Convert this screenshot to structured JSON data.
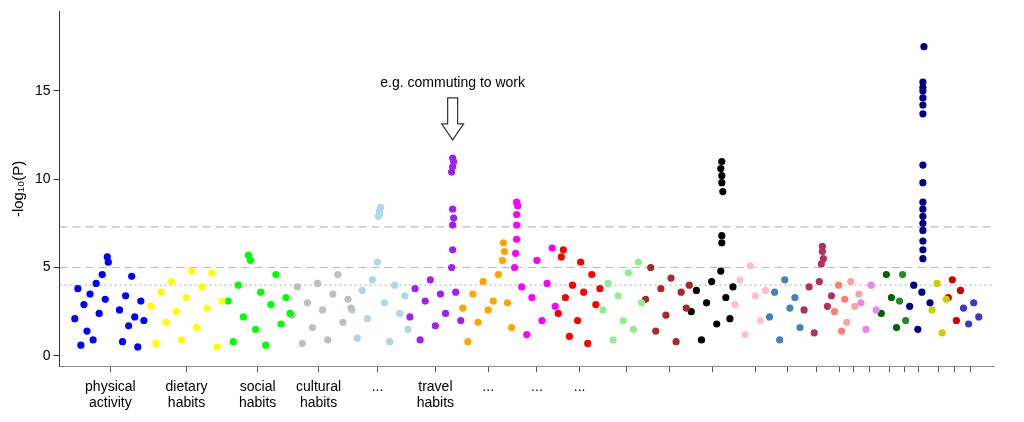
{
  "chart_data": {
    "type": "scatter",
    "y_label": "-log₁₀(P)",
    "xlim": [
      0,
      92
    ],
    "ylim": [
      -0.6,
      19.5
    ],
    "yticks": [
      0,
      5,
      10,
      15
    ],
    "grid": false,
    "xticks": [
      {
        "value": 5.0,
        "label": "physical activity"
      },
      {
        "value": 12.5,
        "label": "dietary habits"
      },
      {
        "value": 19.5,
        "label": "social habits"
      },
      {
        "value": 25.5,
        "label": "cultural habits"
      },
      {
        "value": 31.3,
        "label": "..."
      },
      {
        "value": 37.0,
        "label": "travel habits"
      },
      {
        "value": 42.2,
        "label": "..."
      },
      {
        "value": 47.0,
        "label": "..."
      },
      {
        "value": 51.2,
        "label": "..."
      },
      {
        "value": 55.8,
        "label": null
      },
      {
        "value": 60.1,
        "label": null
      },
      {
        "value": 64.3,
        "label": null
      },
      {
        "value": 68.5,
        "label": null
      },
      {
        "value": 71.7,
        "label": null
      },
      {
        "value": 74.5,
        "label": null
      },
      {
        "value": 76.8,
        "label": null
      },
      {
        "value": 78.2,
        "label": null
      },
      {
        "value": 79.7,
        "label": null
      },
      {
        "value": 81.7,
        "label": null
      },
      {
        "value": 83.2,
        "label": null
      },
      {
        "value": 84.6,
        "label": null
      },
      {
        "value": 86.5,
        "label": null
      },
      {
        "value": 88.1,
        "label": null
      },
      {
        "value": 89.7,
        "label": null
      }
    ],
    "reference_lines": [
      {
        "value": 7.3,
        "line_style": "dashed"
      },
      {
        "value": 5,
        "line_style": "dashed"
      },
      {
        "value": 4,
        "line_style": "dotted"
      }
    ],
    "annotation": {
      "text": "e.g. commuting to work",
      "x": 38.7,
      "y": 12.0
    },
    "series": [
      {
        "color": "#0000FF",
        "x": [
          1.5,
          1.8,
          2.1,
          2.4,
          2.7,
          3.0,
          3.3,
          3.6,
          3.9,
          4.2,
          4.5,
          4.7,
          4.8,
          5.9,
          6.2,
          6.5,
          6.8,
          7.1,
          7.4,
          7.7,
          8.0,
          8.3
        ],
        "values": [
          2.1,
          3.8,
          0.6,
          2.9,
          1.4,
          3.5,
          0.9,
          4.1,
          2.4,
          4.6,
          3.2,
          5.6,
          5.3,
          2.6,
          0.8,
          3.4,
          1.7,
          4.5,
          2.2,
          0.5,
          3.1,
          2.0
        ]
      },
      {
        "color": "#FFFF00",
        "x": [
          9.0,
          9.5,
          10.0,
          10.5,
          11.0,
          11.5,
          12.0,
          12.5,
          13.0,
          13.5,
          14.0,
          14.5,
          15.0,
          15.5,
          16.0
        ],
        "values": [
          2.8,
          0.7,
          3.6,
          1.9,
          4.2,
          2.5,
          0.9,
          3.3,
          4.8,
          1.6,
          3.9,
          2.7,
          4.7,
          0.5,
          3.1
        ]
      },
      {
        "color": "#00FF00",
        "x": [
          16.6,
          17.1,
          17.6,
          18.1,
          18.6,
          18.8,
          19.3,
          19.8,
          20.3,
          20.8,
          21.3,
          21.8,
          22.3,
          22.7
        ],
        "values": [
          3.1,
          0.8,
          4.0,
          2.2,
          5.7,
          5.4,
          1.5,
          3.6,
          0.6,
          2.9,
          4.6,
          1.8,
          3.3,
          2.4
        ]
      },
      {
        "color": "#BEBEBE",
        "x": [
          22.9,
          23.4,
          23.9,
          24.4,
          24.9,
          25.4,
          25.9,
          26.4,
          26.9,
          27.4,
          27.9,
          28.4,
          28.7
        ],
        "values": [
          2.3,
          3.9,
          0.7,
          3.0,
          1.6,
          4.1,
          2.6,
          0.9,
          3.5,
          4.6,
          1.9,
          3.2,
          2.7
        ]
      },
      {
        "color": "#ADD8E6",
        "x": [
          28.8,
          29.3,
          29.8,
          30.3,
          30.8,
          31.3,
          31.4,
          31.5,
          31.6,
          31.5,
          32.0,
          32.5,
          33.0,
          33.5,
          34.0,
          34.3
        ],
        "values": [
          2.6,
          1.0,
          3.7,
          2.1,
          4.3,
          5.3,
          7.9,
          8.2,
          8.4,
          8.0,
          3.0,
          0.8,
          4.0,
          2.4,
          3.4,
          1.5
        ]
      },
      {
        "color": "#A020F0",
        "x": [
          34.5,
          35.0,
          35.5,
          36.0,
          36.5,
          37.0,
          37.5,
          38.0,
          38.6,
          38.7,
          38.7,
          38.8,
          38.7,
          38.6,
          38.7,
          38.8,
          38.7,
          39.0,
          39.5
        ],
        "values": [
          2.2,
          3.8,
          0.9,
          3.1,
          4.3,
          1.7,
          3.5,
          2.4,
          5.0,
          6.0,
          7.4,
          7.8,
          8.3,
          10.4,
          10.7,
          11.0,
          11.2,
          3.6,
          2.0
        ]
      },
      {
        "color": "#FFA500",
        "x": [
          39.7,
          40.2,
          40.7,
          41.2,
          41.7,
          42.2,
          42.7,
          43.2,
          43.6,
          43.7,
          43.8,
          44.1,
          44.5
        ],
        "values": [
          2.7,
          0.8,
          3.5,
          1.9,
          4.2,
          2.6,
          3.1,
          4.6,
          5.4,
          6.4,
          5.9,
          3.0,
          1.6
        ]
      },
      {
        "color": "#FF00FF",
        "x": [
          44.8,
          44.9,
          45.0,
          45.0,
          45.0,
          45.1,
          45.0,
          45.5,
          46.0,
          46.5,
          47.0,
          47.5,
          48.0,
          48.5,
          48.8
        ],
        "values": [
          5.0,
          5.8,
          6.6,
          7.4,
          8.0,
          8.5,
          8.7,
          3.9,
          1.2,
          3.3,
          5.4,
          2.0,
          4.1,
          6.1,
          2.8
        ]
      },
      {
        "color": "#FF0000",
        "x": [
          49.1,
          49.4,
          49.6,
          49.8,
          50.2,
          50.5,
          51.0,
          51.3,
          51.6,
          52.0,
          52.4,
          52.8,
          53.2
        ],
        "values": [
          2.4,
          5.6,
          6.0,
          3.3,
          1.1,
          4.0,
          2.0,
          5.3,
          3.6,
          0.7,
          4.6,
          2.9,
          3.8
        ]
      },
      {
        "color": "#90EE90",
        "x": [
          53.5,
          54.0,
          54.5,
          55.0,
          55.5,
          56.0,
          56.5,
          57.0,
          57.3
        ],
        "values": [
          2.6,
          4.1,
          0.9,
          3.4,
          2.0,
          4.7,
          1.5,
          5.3,
          3.0
        ]
      },
      {
        "color": "#A52A2A",
        "x": [
          57.7,
          58.2,
          58.7,
          59.2,
          59.7,
          60.2,
          60.7,
          61.2,
          61.7,
          62.0
        ],
        "values": [
          3.2,
          5.0,
          1.4,
          3.8,
          2.3,
          4.4,
          0.8,
          3.6,
          2.7,
          4.0
        ]
      },
      {
        "color": "#000000",
        "x": [
          62.2,
          62.7,
          63.2,
          63.7,
          64.2,
          64.7,
          65.1,
          65.2,
          65.2,
          65.3,
          65.2,
          65.2,
          65.1,
          65.2,
          65.6,
          66.0,
          66.3
        ],
        "values": [
          2.5,
          3.7,
          0.9,
          3.0,
          4.2,
          1.8,
          4.8,
          6.4,
          6.8,
          9.3,
          9.8,
          10.2,
          10.6,
          11.0,
          3.3,
          2.1,
          3.9
        ]
      },
      {
        "color": "#FFC0CB",
        "x": [
          66.5,
          67.0,
          67.5,
          68.0,
          68.5,
          69.0,
          69.5
        ],
        "values": [
          2.9,
          4.3,
          1.2,
          5.1,
          3.4,
          2.0,
          3.7
        ]
      },
      {
        "color": "#4682B4",
        "x": [
          69.9,
          70.4,
          70.9,
          71.4,
          71.9,
          72.4,
          72.9
        ],
        "values": [
          2.2,
          3.6,
          0.9,
          4.3,
          2.7,
          3.3,
          1.6
        ]
      },
      {
        "color": "#B03060",
        "x": [
          73.3,
          73.8,
          74.3,
          74.8,
          75.0,
          75.1,
          75.1,
          75.2,
          75.6,
          76.0
        ],
        "values": [
          2.6,
          3.9,
          1.3,
          4.2,
          5.2,
          5.9,
          6.2,
          5.5,
          2.8,
          3.4
        ]
      },
      {
        "color": "#FA8072",
        "x": [
          76.3,
          76.7,
          77.0,
          77.3
        ],
        "values": [
          2.5,
          4.0,
          1.4,
          3.2
        ]
      },
      {
        "color": "#F4A6A0",
        "x": [
          77.5,
          77.9,
          78.3,
          78.7
        ],
        "values": [
          1.9,
          4.2,
          2.8,
          3.5
        ]
      },
      {
        "color": "#EE82EE",
        "x": [
          78.9,
          79.4,
          79.9,
          80.4
        ],
        "values": [
          3.0,
          1.5,
          4.0,
          2.6
        ]
      },
      {
        "color": "#006400",
        "x": [
          80.9,
          81.4,
          81.9,
          82.4
        ],
        "values": [
          2.4,
          4.6,
          3.3,
          1.6
        ]
      },
      {
        "color": "#228B22",
        "x": [
          82.7,
          83.0,
          83.3
        ],
        "values": [
          3.1,
          4.6,
          2.0
        ]
      },
      {
        "color": "#000080",
        "x": [
          83.7,
          84.1,
          84.5,
          84.9,
          85.0,
          85.0,
          85.0,
          85.0,
          85.0,
          85.0,
          85.0,
          85.0,
          85.0,
          85.0,
          85.0,
          85.0,
          85.0,
          85.0,
          85.0,
          85.0,
          85.1,
          85.7
        ],
        "values": [
          2.8,
          4.0,
          1.5,
          3.6,
          5.5,
          6.0,
          6.5,
          7.1,
          7.5,
          7.9,
          8.3,
          8.7,
          9.8,
          10.8,
          13.7,
          14.2,
          14.6,
          15.0,
          15.2,
          15.5,
          17.5,
          3.0
        ]
      },
      {
        "color": "#CDCD00",
        "x": [
          85.9,
          86.4,
          86.9,
          87.3
        ],
        "values": [
          2.6,
          4.1,
          1.3,
          3.2
        ]
      },
      {
        "color": "#CD0000",
        "x": [
          87.5,
          87.9,
          88.3,
          88.7
        ],
        "values": [
          3.3,
          4.3,
          2.0,
          3.7
        ]
      },
      {
        "color": "#3A3AC8",
        "x": [
          89.0,
          89.5,
          90.0,
          90.5
        ],
        "values": [
          2.7,
          1.8,
          3.0,
          2.2
        ]
      }
    ]
  }
}
